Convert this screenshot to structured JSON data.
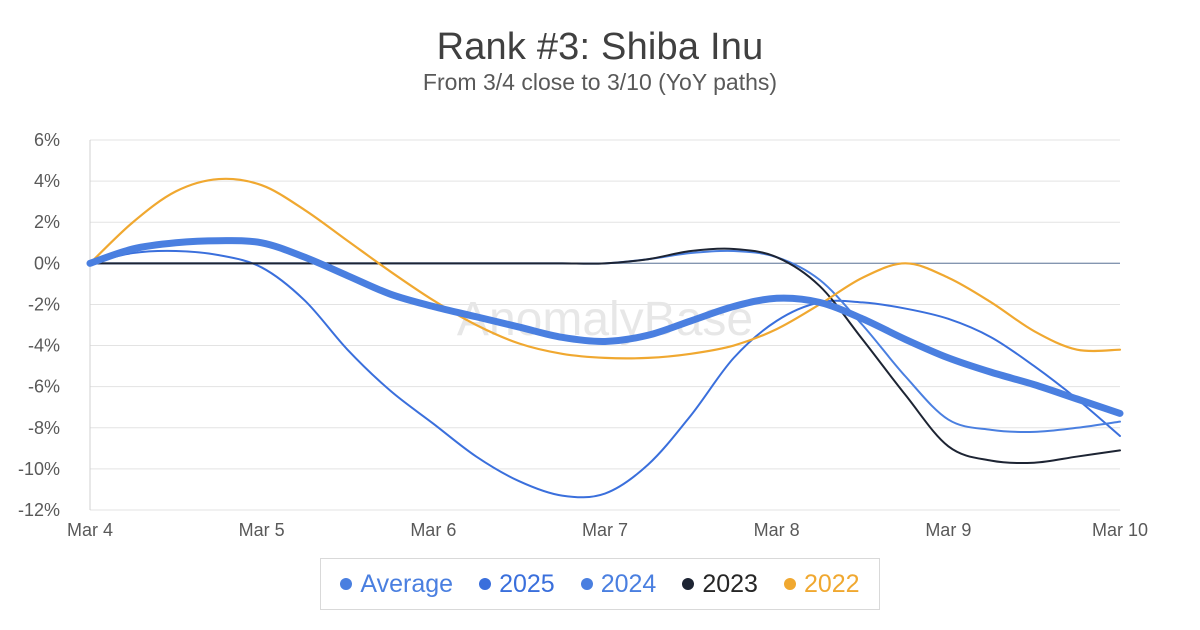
{
  "chart_data": {
    "type": "line",
    "title": "Rank #3: Shiba Inu",
    "subtitle": "From 3/4 close to 3/10 (YoY paths)",
    "watermark": "AnomalyBase",
    "categories": [
      "Mar 4",
      "Mar 5",
      "Mar 6",
      "Mar 7",
      "Mar 8",
      "Mar 9",
      "Mar 10"
    ],
    "ylim": [
      -12,
      6
    ],
    "yticks": [
      6,
      4,
      2,
      0,
      -2,
      -4,
      -6,
      -8,
      -10,
      -12
    ],
    "y_tick_suffix": "%",
    "grid": true,
    "legend_position": "bottom",
    "series": [
      {
        "name": "Average",
        "color": "#4a7fe0",
        "x": [
          0,
          0.25,
          0.5,
          0.75,
          1,
          1.25,
          1.5,
          1.75,
          2,
          2.25,
          2.5,
          2.75,
          3,
          3.25,
          3.5,
          3.75,
          4,
          4.25,
          4.5,
          4.75,
          5,
          5.25,
          5.5,
          5.75,
          6
        ],
        "values": [
          0,
          0.7,
          1.0,
          1.1,
          1.0,
          0.3,
          -0.6,
          -1.5,
          -2.1,
          -2.6,
          -3.1,
          -3.6,
          -3.8,
          -3.5,
          -2.8,
          -2.1,
          -1.7,
          -1.9,
          -2.7,
          -3.7,
          -4.6,
          -5.3,
          -5.9,
          -6.6,
          -7.3
        ]
      },
      {
        "name": "2025",
        "color": "#3a6fdc",
        "x": [
          0,
          0.25,
          0.5,
          0.75,
          1,
          1.25,
          1.5,
          1.75,
          2,
          2.25,
          2.5,
          2.75,
          3,
          3.25,
          3.5,
          3.75,
          4,
          4.25,
          4.5,
          4.75,
          5,
          5.25,
          5.5,
          5.75,
          6
        ],
        "values": [
          0,
          0.5,
          0.6,
          0.4,
          -0.2,
          -1.8,
          -4.2,
          -6.2,
          -7.8,
          -9.4,
          -10.6,
          -11.3,
          -11.2,
          -9.8,
          -7.4,
          -4.6,
          -2.8,
          -1.9,
          -1.9,
          -2.2,
          -2.7,
          -3.6,
          -5.0,
          -6.6,
          -8.4
        ]
      },
      {
        "name": "2024",
        "color": "#4a7fe0",
        "x": [
          0,
          0.25,
          0.5,
          0.75,
          1,
          1.25,
          1.5,
          1.75,
          2,
          2.25,
          2.5,
          2.75,
          3,
          3.25,
          3.5,
          3.75,
          4,
          4.25,
          4.5,
          4.75,
          5,
          5.25,
          5.5,
          5.75,
          6
        ],
        "values": [
          0,
          0,
          0,
          0,
          0,
          0,
          0,
          0,
          0,
          0,
          0,
          0,
          0,
          0.2,
          0.5,
          0.6,
          0.3,
          -0.8,
          -3.0,
          -5.5,
          -7.6,
          -8.1,
          -8.2,
          -8.0,
          -7.7
        ]
      },
      {
        "name": "2023",
        "color": "#1d2433",
        "x": [
          0,
          0.25,
          0.5,
          0.75,
          1,
          1.25,
          1.5,
          1.75,
          2,
          2.25,
          2.5,
          2.75,
          3,
          3.25,
          3.5,
          3.75,
          4,
          4.25,
          4.5,
          4.75,
          5,
          5.25,
          5.5,
          5.75,
          6
        ],
        "values": [
          0,
          0,
          0,
          0,
          0,
          0,
          0,
          0,
          0,
          0,
          0,
          0,
          0,
          0.2,
          0.6,
          0.7,
          0.3,
          -1.1,
          -3.7,
          -6.4,
          -8.9,
          -9.6,
          -9.7,
          -9.4,
          -9.1
        ]
      },
      {
        "name": "2022",
        "color": "#f0a830",
        "x": [
          0,
          0.25,
          0.5,
          0.75,
          1,
          1.25,
          1.5,
          1.75,
          2,
          2.25,
          2.5,
          2.75,
          3,
          3.25,
          3.5,
          3.75,
          4,
          4.25,
          4.5,
          4.75,
          5,
          5.25,
          5.5,
          5.75,
          6
        ],
        "values": [
          0,
          2.0,
          3.5,
          4.1,
          3.8,
          2.6,
          1.1,
          -0.4,
          -1.8,
          -3.0,
          -3.9,
          -4.4,
          -4.6,
          -4.6,
          -4.4,
          -4.0,
          -3.2,
          -2.0,
          -0.7,
          0.0,
          -0.7,
          -1.9,
          -3.3,
          -4.2,
          -4.2
        ]
      }
    ]
  }
}
